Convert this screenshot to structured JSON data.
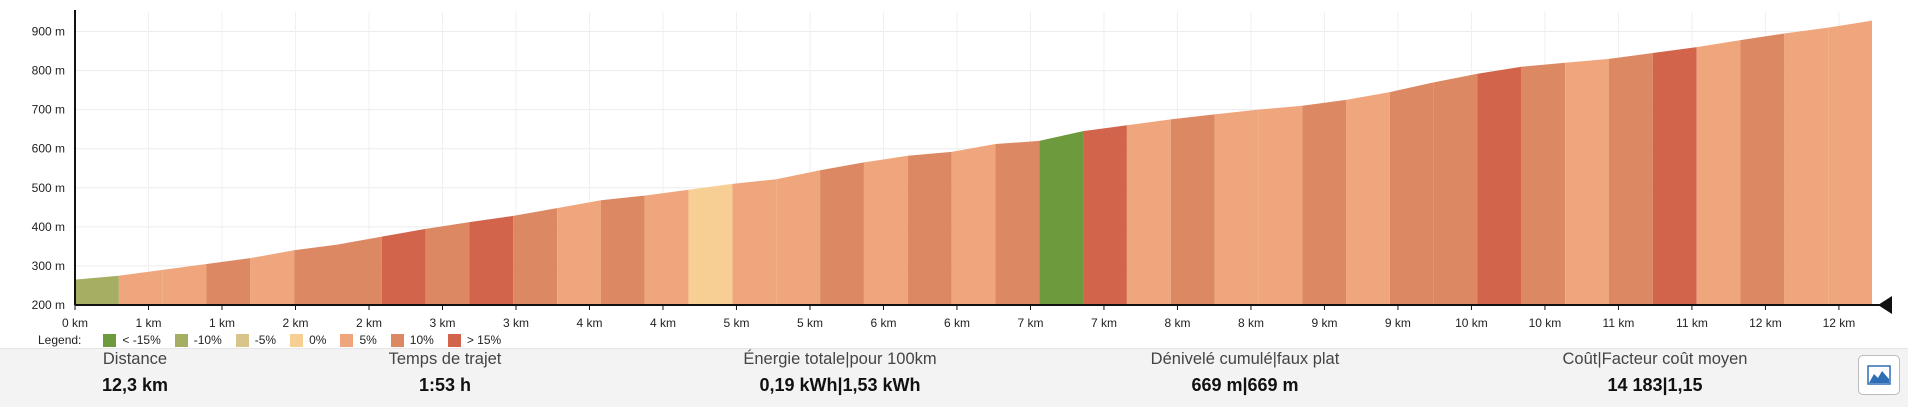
{
  "chart_data": {
    "type": "area",
    "title": "",
    "xlabel": "",
    "ylabel": "",
    "x_unit": "km",
    "xlim": [
      0,
      12.3
    ],
    "ylim": [
      200,
      950
    ],
    "y_ticks": [
      200,
      300,
      400,
      500,
      600,
      700,
      800,
      900
    ],
    "y_tick_labels": [
      "200 m",
      "300 m",
      "400 m",
      "500 m",
      "600 m",
      "700 m",
      "800 m",
      "900 m"
    ],
    "x_tick_labels": [
      "0 km",
      "1 km",
      "1 km",
      "2 km",
      "2 km",
      "3 km",
      "3 km",
      "4 km",
      "4 km",
      "5 km",
      "5 km",
      "6 km",
      "6 km",
      "7 km",
      "7 km",
      "8 km",
      "8 km",
      "9 km",
      "9 km",
      "10 km",
      "10 km",
      "11 km",
      "11 km",
      "12 km",
      "12 km"
    ],
    "grid": true,
    "legend_position": "bottom-left",
    "x_km": [
      0,
      0.3,
      0.6,
      0.9,
      1.2,
      1.5,
      1.8,
      2.1,
      2.4,
      2.7,
      3.0,
      3.3,
      3.6,
      3.9,
      4.2,
      4.5,
      4.8,
      5.1,
      5.4,
      5.7,
      6.0,
      6.3,
      6.6,
      6.9,
      7.2,
      7.5,
      7.8,
      8.1,
      8.4,
      8.7,
      9.0,
      9.3,
      9.6,
      9.9,
      10.2,
      10.5,
      10.8,
      11.1,
      11.4,
      11.7,
      12.0,
      12.3
    ],
    "elevation_m": [
      265,
      275,
      290,
      305,
      320,
      340,
      355,
      375,
      395,
      412,
      428,
      448,
      468,
      480,
      495,
      510,
      522,
      545,
      565,
      582,
      592,
      612,
      620,
      645,
      660,
      675,
      688,
      700,
      710,
      725,
      745,
      770,
      792,
      810,
      820,
      830,
      845,
      860,
      878,
      895,
      910,
      928
    ],
    "grade_class": [
      1,
      4,
      4,
      5,
      4,
      5,
      5,
      6,
      5,
      6,
      5,
      4,
      5,
      4,
      3,
      4,
      4,
      5,
      4,
      5,
      4,
      5,
      0,
      6,
      4,
      5,
      4,
      4,
      5,
      4,
      5,
      5,
      6,
      5,
      4,
      5,
      6,
      4,
      5,
      4,
      4
    ]
  },
  "legend": {
    "label": "Legend:",
    "items": [
      {
        "label": "< -15%",
        "color": "#6e9a3e"
      },
      {
        "label": "-10%",
        "color": "#a5ae62"
      },
      {
        "label": "-5%",
        "color": "#d9c48a"
      },
      {
        "label": "0%",
        "color": "#f7cf94"
      },
      {
        "label": "5%",
        "color": "#f0a67d"
      },
      {
        "label": "10%",
        "color": "#dc8863"
      },
      {
        "label": "> 15%",
        "color": "#d2644b"
      }
    ]
  },
  "stats": {
    "distance": {
      "title": "Distance",
      "value": "12,3 km"
    },
    "time": {
      "title": "Temps de trajet",
      "value": "1:53 h"
    },
    "energy": {
      "title": "Énergie totale|pour 100km",
      "value": "0,19 kWh|1,53 kWh"
    },
    "elevation": {
      "title": "Dénivelé cumulé|faux plat",
      "value": "669 m|669 m"
    },
    "cost": {
      "title": "Coût|Facteur coût moyen",
      "value": "14 183|1,15"
    }
  },
  "profile_button": {
    "icon": "mountain-chart-icon"
  }
}
